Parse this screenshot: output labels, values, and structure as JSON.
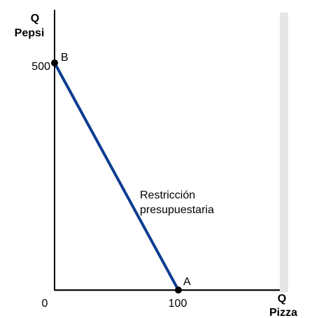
{
  "chart_data": {
    "type": "line",
    "ylabel_line1": "Q",
    "ylabel_line2": "Pepsi",
    "xlabel_line1": "Q",
    "xlabel_line2": "Pizza",
    "xlim": [
      0,
      100
    ],
    "ylim": [
      0,
      500
    ],
    "origin_label": "0",
    "x_ticks": [
      {
        "value": 100,
        "label": "100"
      }
    ],
    "y_ticks": [
      {
        "value": 500,
        "label": "500"
      }
    ],
    "series": [
      {
        "name": "Restricción presupuestaria",
        "color": "#0b3d91",
        "points": [
          {
            "x": 0,
            "y": 500
          },
          {
            "x": 100,
            "y": 0
          }
        ]
      }
    ],
    "points": [
      {
        "label": "B",
        "x": 0,
        "y": 500
      },
      {
        "label": "A",
        "x": 100,
        "y": 0
      }
    ],
    "annotation_lines": [
      "Restricción",
      "presupuestaria"
    ],
    "colors": {
      "line": "#0b3d91",
      "axis": "#000000",
      "shadow": "#e6e6e6"
    }
  }
}
